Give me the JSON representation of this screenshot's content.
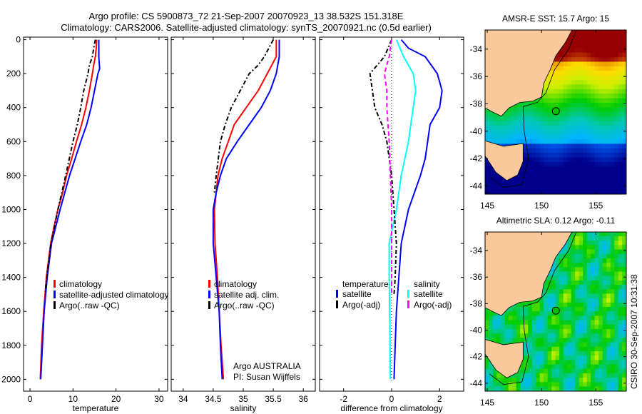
{
  "title_line1": "Argo profile: CS 5900873_72 21-Sep-2007 20070923_13 38.532S 151.318E",
  "title_line2": "Climatology: CARS2006. Satellite-adjusted climatology: synTS_20070921.nc (0.5d earlier)",
  "side_label": "CSIRO 30-Sep-2007 10:31:38",
  "colors": {
    "climatology": "#ff0000",
    "satellite": "#0000ff",
    "argo": "#000000",
    "sal_satellite": "#00ffff",
    "sal_argo": "#ff00ff"
  },
  "chart_data": [
    {
      "type": "line",
      "xlabel": "temperature",
      "ylabel": "",
      "xlim": [
        -1.5,
        32
      ],
      "ylim": [
        2070,
        -15
      ],
      "xticks": [
        0,
        10,
        20,
        30
      ],
      "yticks": [
        0,
        200,
        400,
        600,
        800,
        1000,
        1200,
        1400,
        1600,
        1800,
        2000
      ],
      "legend": [
        "climatology",
        "satellite-adjusted climatology",
        "Argo(..raw -QC)"
      ],
      "series": [
        {
          "name": "climatology",
          "color": "#ff0000",
          "dash": "",
          "depth": [
            0,
            50,
            100,
            150,
            200,
            300,
            400,
            500,
            600,
            700,
            800,
            900,
            1000,
            1100,
            1200,
            1400,
            1600,
            1800,
            2000
          ],
          "values": [
            15.5,
            15.4,
            15.2,
            14.8,
            14.5,
            13.8,
            13,
            12,
            10.8,
            9.7,
            8.5,
            7.6,
            6.5,
            5.6,
            4.8,
            3.8,
            3.2,
            2.7,
            2.4
          ]
        },
        {
          "name": "satellite-adjusted climatology",
          "color": "#0000ff",
          "dash": "",
          "depth": [
            0,
            100,
            170,
            200,
            300,
            400,
            500,
            600,
            700,
            800,
            1000,
            1200,
            1400,
            1600,
            1800,
            2000
          ],
          "values": [
            16,
            16,
            16.2,
            15.8,
            15,
            14.2,
            13.2,
            11.8,
            10.5,
            9.2,
            7,
            5,
            4,
            3.3,
            2.9,
            2.5
          ]
        },
        {
          "name": "Argo(..raw -QC)",
          "color": "#000000",
          "dash": "6,3,2,3",
          "depth": [
            0,
            50,
            100,
            150,
            200,
            300,
            400,
            500,
            600,
            800,
            1000,
            1200,
            1400,
            1500
          ],
          "values": [
            15.2,
            14.8,
            14.5,
            13.8,
            13.5,
            12.5,
            11.8,
            11,
            10,
            8.3,
            6.5,
            4.9,
            3.9,
            3.5
          ]
        }
      ]
    },
    {
      "type": "line",
      "xlabel": "salinity",
      "xlim": [
        33.8,
        36.2
      ],
      "ylim": [
        2070,
        -15
      ],
      "xticks": [
        34,
        34.5,
        35,
        35.5,
        36
      ],
      "legend": [
        "climatology",
        "satellite adj. clim.",
        "Argo(..raw -QC)"
      ],
      "annotation": [
        "Argo AUSTRALIA",
        "PI: Susan Wijffels"
      ],
      "series": [
        {
          "name": "climatology",
          "color": "#ff0000",
          "dash": "",
          "depth": [
            0,
            100,
            200,
            300,
            400,
            500,
            600,
            700,
            800,
            900,
            1000,
            1200,
            1400,
            1600,
            1800,
            2000
          ],
          "values": [
            35.55,
            35.55,
            35.4,
            35.25,
            35.05,
            34.85,
            34.75,
            34.65,
            34.58,
            34.55,
            34.52,
            34.53,
            34.57,
            34.6,
            34.63,
            34.67
          ]
        },
        {
          "name": "satellite adj. clim.",
          "color": "#0000ff",
          "dash": "",
          "depth": [
            0,
            100,
            200,
            300,
            400,
            500,
            600,
            700,
            800,
            900,
            1000,
            1200,
            1400,
            1600,
            1800,
            2000
          ],
          "values": [
            35.6,
            35.6,
            35.55,
            35.45,
            35.3,
            35.1,
            34.9,
            34.72,
            34.62,
            34.55,
            34.5,
            34.5,
            34.55,
            34.6,
            34.62,
            34.65
          ]
        },
        {
          "name": "Argo(..raw -QC)",
          "color": "#000000",
          "dash": "6,3,2,3",
          "depth": [
            0,
            100,
            150,
            200,
            300,
            400,
            500,
            600,
            800,
            900
          ],
          "values": [
            35.5,
            35.35,
            35.25,
            35.1,
            34.95,
            34.8,
            34.7,
            34.62,
            34.55,
            34.52
          ]
        }
      ]
    },
    {
      "type": "line",
      "xlabel": "difference from climatology",
      "xlim": [
        -3,
        3
      ],
      "ylim": [
        2070,
        -15
      ],
      "xticks": [
        -2,
        0,
        2
      ],
      "legend_groups": [
        {
          "heading": "temperature",
          "items": [
            "satellite",
            "Argo(-adj)"
          ]
        },
        {
          "heading": "salinity",
          "items": [
            "satellite",
            "Argo(-adj)"
          ]
        }
      ],
      "series": [
        {
          "name": "temperature satellite",
          "color": "#0000ff",
          "dash": "",
          "depth": [
            0,
            50,
            100,
            200,
            300,
            400,
            500,
            600,
            700,
            800,
            1000,
            1200,
            1400,
            1600,
            1800,
            2000
          ],
          "values": [
            0.4,
            0.7,
            1.4,
            1.9,
            2.1,
            2.0,
            1.6,
            1.5,
            1.4,
            1.2,
            0.7,
            0.4,
            0.3,
            0.2,
            0.15,
            0.1
          ]
        },
        {
          "name": "salinity satellite",
          "color": "#00ffff",
          "dash": "",
          "depth": [
            0,
            100,
            200,
            300,
            400,
            500,
            600,
            800,
            1000,
            1200,
            1400,
            1600,
            2000
          ],
          "values": [
            0.2,
            0.5,
            0.9,
            1.0,
            0.9,
            0.8,
            0.7,
            0.4,
            0.2,
            -0.1,
            -0.1,
            -0.08,
            -0.05
          ]
        },
        {
          "name": "temperature Argo(-adj)",
          "color": "#000000",
          "dash": "6,3,2,3",
          "depth": [
            0,
            100,
            200,
            300,
            400,
            500,
            600,
            800,
            1000,
            1200,
            1400,
            1500
          ],
          "values": [
            0,
            -0.3,
            -0.9,
            -0.8,
            -0.7,
            -0.4,
            -0.2,
            0,
            0.1,
            0.2,
            0.15,
            0.1
          ]
        },
        {
          "name": "salinity Argo(-adj)",
          "color": "#ff00ff",
          "dash": "6,4",
          "depth": [
            0,
            100,
            200,
            300,
            400,
            600,
            800,
            1000,
            1500
          ],
          "values": [
            0,
            -0.1,
            -0.3,
            -0.2,
            -0.2,
            -0.1,
            -0.05,
            0,
            0
          ]
        }
      ]
    },
    {
      "type": "heatmap",
      "title": "AMSR-E SST: 15.7 Argo: 15",
      "lon_range": [
        144.8,
        157.8
      ],
      "lat_range": [
        -44.6,
        -32.6
      ],
      "xticks": [
        145,
        150,
        155
      ],
      "yticks": [
        -34,
        -36,
        -38,
        -40,
        -42,
        -44
      ],
      "marker": {
        "lon": 151.318,
        "lat": -38.532
      }
    },
    {
      "type": "heatmap",
      "title": "Altimetric SLA: 0.12 Argo: -0.11",
      "lon_range": [
        144.8,
        157.8
      ],
      "lat_range": [
        -44.6,
        -32.6
      ],
      "xticks": [
        145,
        150,
        155
      ],
      "yticks": [
        -34,
        -36,
        -38,
        -40,
        -42,
        -44
      ],
      "marker": {
        "lon": 151.318,
        "lat": -38.532
      }
    }
  ]
}
